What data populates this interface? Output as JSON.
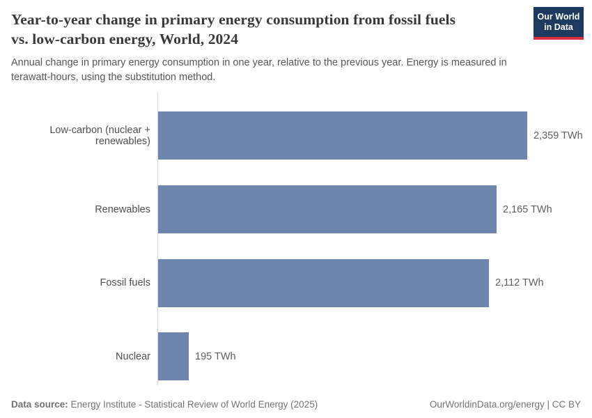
{
  "header": {
    "title": "Year-to-year change in primary energy consumption from fossil fuels vs. low-carbon energy, World, 2024",
    "subtitle": "Annual change in primary energy consumption in one year, relative to the previous year. Energy is measured in terawatt-hours, using the substitution method.",
    "logo_line1": "Our World",
    "logo_line2": "in Data"
  },
  "chart_data": {
    "type": "bar",
    "orientation": "horizontal",
    "title": "Year-to-year change in primary energy consumption from fossil fuels vs. low-carbon energy, World, 2024",
    "categories": [
      "Low-carbon (nuclear + renewables)",
      "Renewables",
      "Fossil fuels",
      "Nuclear"
    ],
    "values": [
      2359,
      2165,
      2112,
      195
    ],
    "value_labels": [
      "2,359 TWh",
      "2,165 TWh",
      "2,112 TWh",
      "195 TWh"
    ],
    "unit": "TWh",
    "xlim": [
      0,
      2359
    ],
    "grid": false,
    "legend": "none",
    "bar_color": "#6e86ae"
  },
  "footer": {
    "data_source_label": "Data source:",
    "data_source_text": "Energy Institute - Statistical Review of World Energy (2025)",
    "right_text": "OurWorldinData.org/energy | CC BY"
  },
  "colors": {
    "bar": "#6e86ae",
    "axis_line": "#d9d9d9",
    "logo_bg": "#1e3a5f",
    "logo_accent": "#dc2f3f",
    "title_text": "#383838",
    "subtitle_text": "#565656"
  }
}
